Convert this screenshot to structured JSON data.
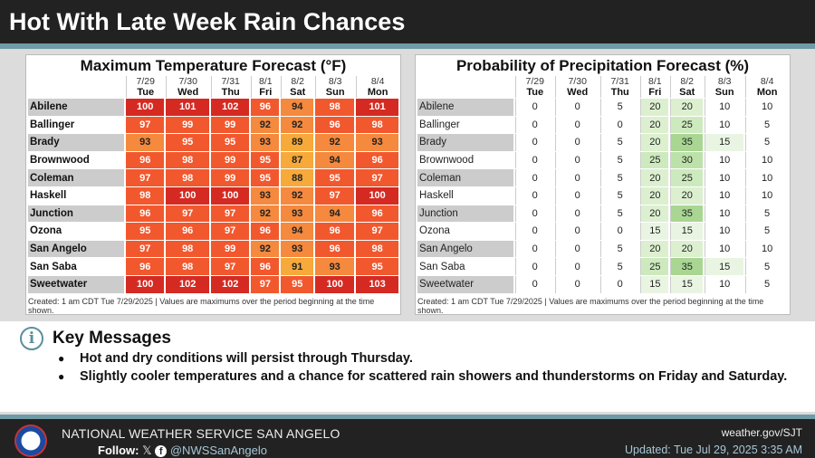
{
  "title": "Hot With Late Week Rain Chances",
  "days": [
    {
      "date": "7/29",
      "dow": "Tue"
    },
    {
      "date": "7/30",
      "dow": "Wed"
    },
    {
      "date": "7/31",
      "dow": "Thu"
    },
    {
      "date": "8/1",
      "dow": "Fri"
    },
    {
      "date": "8/2",
      "dow": "Sat"
    },
    {
      "date": "8/3",
      "dow": "Sun"
    },
    {
      "date": "8/4",
      "dow": "Mon"
    }
  ],
  "temp": {
    "title": "Maximum Temperature Forecast (°F)",
    "rows": [
      [
        "Abilene",
        100,
        101,
        102,
        96,
        94,
        98,
        101
      ],
      [
        "Ballinger",
        97,
        99,
        99,
        92,
        92,
        96,
        98
      ],
      [
        "Brady",
        93,
        95,
        95,
        93,
        89,
        92,
        93
      ],
      [
        "Brownwood",
        96,
        98,
        99,
        95,
        87,
        94,
        96
      ],
      [
        "Coleman",
        97,
        98,
        99,
        95,
        88,
        95,
        97
      ],
      [
        "Haskell",
        98,
        100,
        100,
        93,
        92,
        97,
        100
      ],
      [
        "Junction",
        96,
        97,
        97,
        92,
        93,
        94,
        96
      ],
      [
        "Ozona",
        95,
        96,
        97,
        96,
        94,
        96,
        97
      ],
      [
        "San Angelo",
        97,
        98,
        99,
        92,
        93,
        96,
        98
      ],
      [
        "San Saba",
        96,
        98,
        97,
        96,
        91,
        93,
        95
      ],
      [
        "Sweetwater",
        100,
        102,
        102,
        97,
        95,
        100,
        103
      ]
    ],
    "note": "Created: 1 am CDT Tue 7/29/2025  |  Values are maximums over the period beginning at the time shown."
  },
  "precip": {
    "title": "Probability of Precipitation Forecast (%)",
    "rows": [
      [
        "Abilene",
        0,
        0,
        5,
        20,
        20,
        10,
        10
      ],
      [
        "Ballinger",
        0,
        0,
        0,
        20,
        25,
        10,
        5
      ],
      [
        "Brady",
        0,
        0,
        5,
        20,
        35,
        15,
        5
      ],
      [
        "Brownwood",
        0,
        0,
        5,
        25,
        30,
        10,
        10
      ],
      [
        "Coleman",
        0,
        0,
        5,
        20,
        25,
        10,
        10
      ],
      [
        "Haskell",
        0,
        0,
        5,
        20,
        20,
        10,
        10
      ],
      [
        "Junction",
        0,
        0,
        5,
        20,
        35,
        10,
        5
      ],
      [
        "Ozona",
        0,
        0,
        0,
        15,
        15,
        10,
        5
      ],
      [
        "San Angelo",
        0,
        0,
        5,
        20,
        20,
        10,
        10
      ],
      [
        "San Saba",
        0,
        0,
        5,
        25,
        35,
        15,
        5
      ],
      [
        "Sweetwater",
        0,
        0,
        0,
        15,
        15,
        10,
        5
      ]
    ],
    "note": "Created: 1 am CDT Tue 7/29/2025  |  Values are maximums over the period beginning at the time shown."
  },
  "key": {
    "icon": "info-icon",
    "title": "Key Messages",
    "items": [
      "Hot and dry conditions will persist through Thursday.",
      "Slightly cooler temperatures and a chance for scattered rain showers and thunderstorms on Friday and Saturday."
    ]
  },
  "footer": {
    "office": "NATIONAL WEATHER SERVICE SAN ANGELO",
    "follow": "Follow:",
    "x": "𝕏",
    "fb": "f",
    "handle": "@NWSSanAngelo",
    "url": "weather.gov/SJT",
    "updated": "Updated: Tue Jul 29, 2025 3:35 AM"
  }
}
